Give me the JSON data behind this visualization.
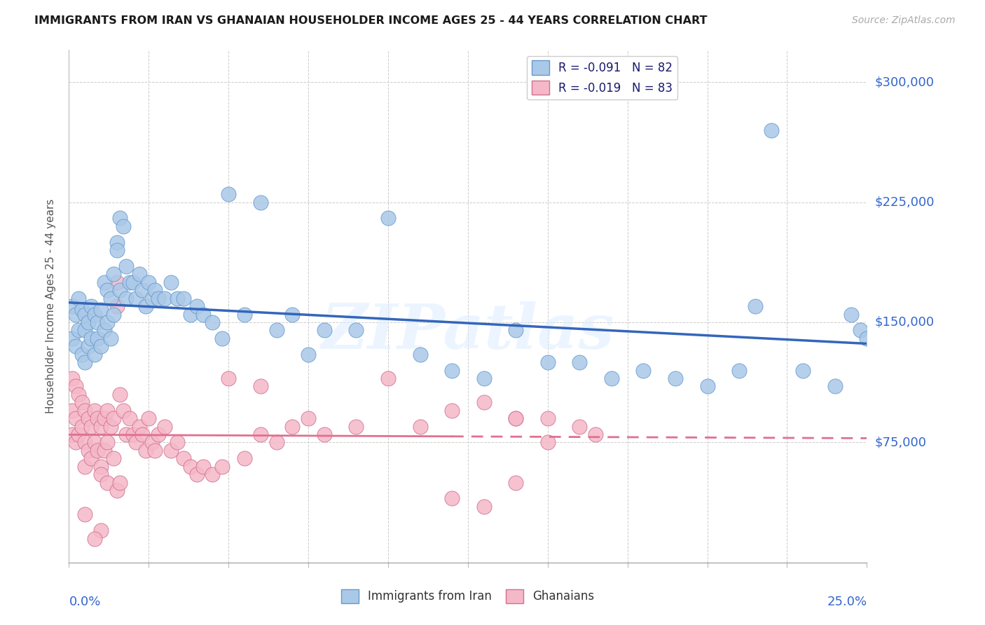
{
  "title": "IMMIGRANTS FROM IRAN VS GHANAIAN HOUSEHOLDER INCOME AGES 25 - 44 YEARS CORRELATION CHART",
  "source": "Source: ZipAtlas.com",
  "ylabel": "Householder Income Ages 25 - 44 years",
  "y_ticks": [
    75000,
    150000,
    225000,
    300000
  ],
  "y_tick_labels": [
    "$75,000",
    "$150,000",
    "$225,000",
    "$300,000"
  ],
  "xmin": 0.0,
  "xmax": 0.25,
  "ymin": 0,
  "ymax": 320000,
  "series1_color": "#aac8e8",
  "series1_edge": "#6699cc",
  "series2_color": "#f5b8c8",
  "series2_edge": "#d07090",
  "line1_color": "#3366bb",
  "line2_color": "#e07090",
  "background_color": "#ffffff",
  "watermark": "ZIPatlas",
  "legend1_label": "R = -0.091   N = 82",
  "legend2_label": "R = -0.019   N = 83",
  "bottom_legend1": "Immigrants from Iran",
  "bottom_legend2": "Ghanaians",
  "iran_x": [
    0.001,
    0.001,
    0.002,
    0.002,
    0.003,
    0.003,
    0.004,
    0.004,
    0.005,
    0.005,
    0.005,
    0.006,
    0.006,
    0.007,
    0.007,
    0.008,
    0.008,
    0.009,
    0.009,
    0.01,
    0.01,
    0.011,
    0.011,
    0.012,
    0.012,
    0.013,
    0.013,
    0.014,
    0.014,
    0.015,
    0.015,
    0.016,
    0.016,
    0.017,
    0.018,
    0.018,
    0.019,
    0.02,
    0.021,
    0.022,
    0.023,
    0.024,
    0.025,
    0.026,
    0.027,
    0.028,
    0.03,
    0.032,
    0.034,
    0.036,
    0.038,
    0.04,
    0.042,
    0.045,
    0.048,
    0.05,
    0.055,
    0.06,
    0.065,
    0.07,
    0.075,
    0.08,
    0.09,
    0.1,
    0.11,
    0.12,
    0.13,
    0.14,
    0.15,
    0.16,
    0.17,
    0.18,
    0.19,
    0.2,
    0.21,
    0.215,
    0.22,
    0.23,
    0.24,
    0.245,
    0.248,
    0.25
  ],
  "iran_y": [
    160000,
    140000,
    155000,
    135000,
    165000,
    145000,
    158000,
    130000,
    155000,
    145000,
    125000,
    150000,
    135000,
    160000,
    140000,
    155000,
    130000,
    150000,
    140000,
    158000,
    135000,
    175000,
    145000,
    170000,
    150000,
    165000,
    140000,
    180000,
    155000,
    200000,
    195000,
    215000,
    170000,
    210000,
    185000,
    165000,
    175000,
    175000,
    165000,
    180000,
    170000,
    160000,
    175000,
    165000,
    170000,
    165000,
    165000,
    175000,
    165000,
    165000,
    155000,
    160000,
    155000,
    150000,
    140000,
    230000,
    155000,
    225000,
    145000,
    155000,
    130000,
    145000,
    145000,
    215000,
    130000,
    120000,
    115000,
    145000,
    125000,
    125000,
    115000,
    120000,
    115000,
    110000,
    120000,
    160000,
    270000,
    120000,
    110000,
    155000,
    145000,
    140000
  ],
  "ghana_x": [
    0.001,
    0.001,
    0.001,
    0.002,
    0.002,
    0.002,
    0.003,
    0.003,
    0.004,
    0.004,
    0.005,
    0.005,
    0.005,
    0.006,
    0.006,
    0.007,
    0.007,
    0.008,
    0.008,
    0.009,
    0.009,
    0.01,
    0.01,
    0.011,
    0.011,
    0.012,
    0.012,
    0.013,
    0.014,
    0.014,
    0.015,
    0.015,
    0.016,
    0.017,
    0.018,
    0.019,
    0.02,
    0.021,
    0.022,
    0.023,
    0.024,
    0.025,
    0.026,
    0.027,
    0.028,
    0.03,
    0.032,
    0.034,
    0.036,
    0.038,
    0.04,
    0.042,
    0.045,
    0.048,
    0.05,
    0.055,
    0.06,
    0.065,
    0.07,
    0.075,
    0.08,
    0.09,
    0.1,
    0.11,
    0.12,
    0.13,
    0.14,
    0.15,
    0.16,
    0.165,
    0.01,
    0.012,
    0.015,
    0.016,
    0.005,
    0.06,
    0.14,
    0.15,
    0.14,
    0.01,
    0.008,
    0.13,
    0.12
  ],
  "ghana_y": [
    115000,
    95000,
    80000,
    110000,
    90000,
    75000,
    105000,
    80000,
    100000,
    85000,
    95000,
    75000,
    60000,
    90000,
    70000,
    85000,
    65000,
    95000,
    75000,
    90000,
    70000,
    85000,
    60000,
    90000,
    70000,
    95000,
    75000,
    85000,
    90000,
    65000,
    175000,
    160000,
    105000,
    95000,
    80000,
    90000,
    80000,
    75000,
    85000,
    80000,
    70000,
    90000,
    75000,
    70000,
    80000,
    85000,
    70000,
    75000,
    65000,
    60000,
    55000,
    60000,
    55000,
    60000,
    115000,
    65000,
    110000,
    75000,
    85000,
    90000,
    80000,
    85000,
    115000,
    85000,
    95000,
    100000,
    90000,
    90000,
    85000,
    80000,
    55000,
    50000,
    45000,
    50000,
    30000,
    80000,
    90000,
    75000,
    50000,
    20000,
    15000,
    35000,
    40000
  ]
}
